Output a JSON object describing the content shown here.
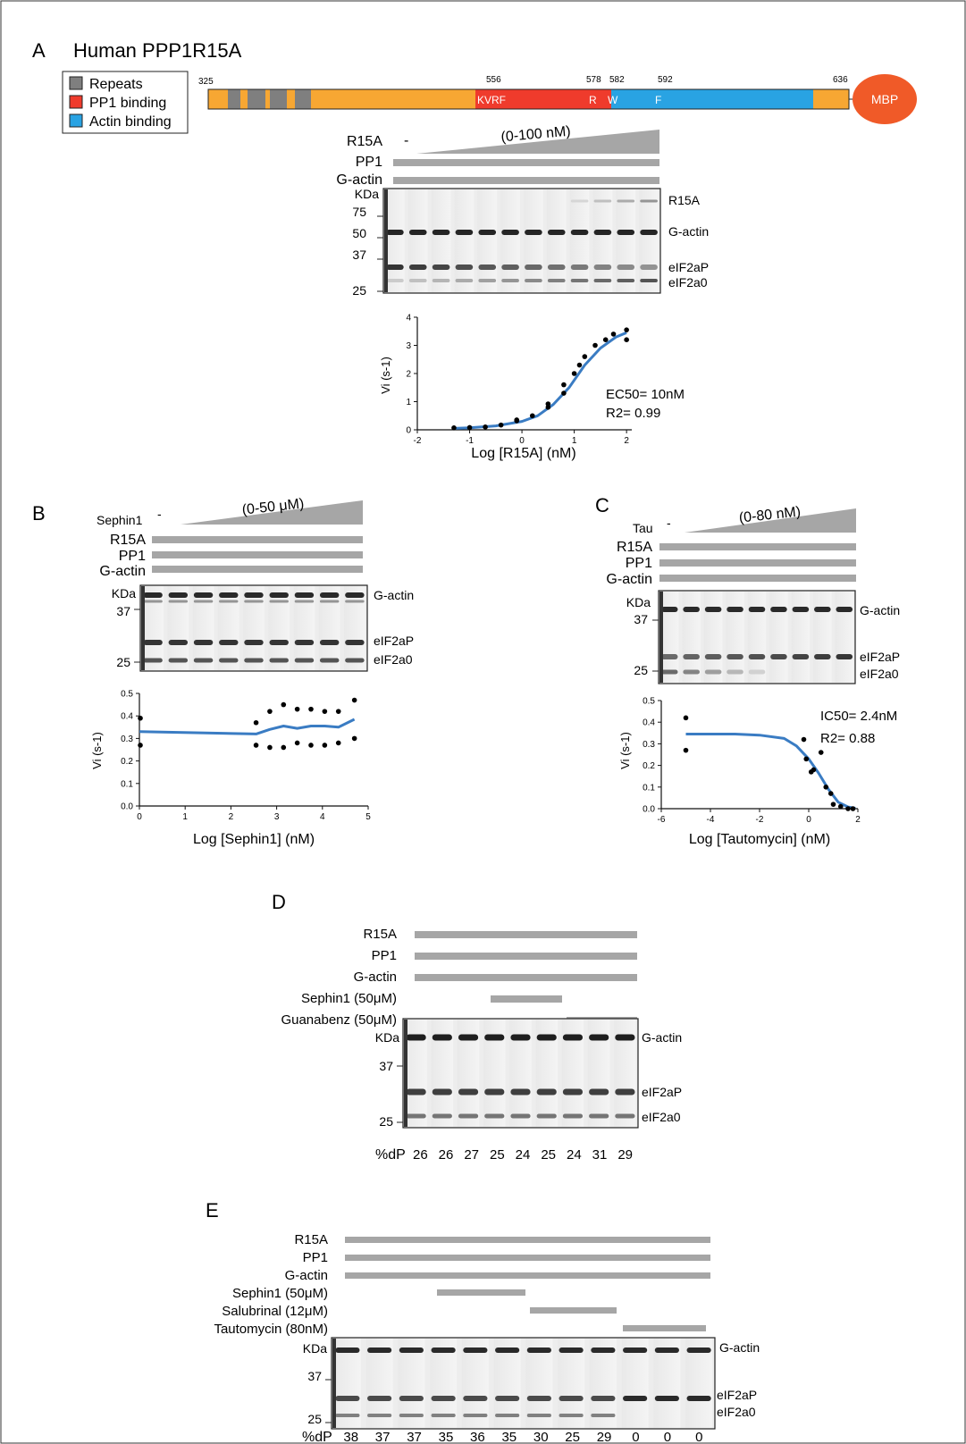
{
  "panelA": {
    "letter": "A",
    "title": "Human PPP1R15A",
    "legend": [
      {
        "label": "Repeats",
        "color": "#7f7f7f"
      },
      {
        "label": "PP1 binding",
        "color": "#ef3b2c"
      },
      {
        "label": "Actin binding",
        "color": "#29a3e3"
      }
    ],
    "domain": {
      "start_label": "325",
      "end_label": "636",
      "positions": [
        {
          "num": "556",
          "motif": "KVRF"
        },
        {
          "num": "578",
          "motif": "R"
        },
        {
          "num": "582",
          "motif": "W"
        },
        {
          "num": "592",
          "motif": "F"
        }
      ],
      "tag": "MBP",
      "colors": {
        "backbone": "#f7a733",
        "repeat": "#7f7f7f",
        "pp1": "#ef3b2c",
        "actin": "#29a3e3",
        "mbp": "#f05a28"
      }
    },
    "gel": {
      "conditions": [
        "R15A",
        "PP1",
        "G-actin"
      ],
      "dash": "-",
      "range_label": "(0-100 nM)",
      "kda": "KDa",
      "markers": [
        "75",
        "50",
        "37",
        "25"
      ],
      "bands": [
        "R15A",
        "G-actin",
        "eIF2aP",
        "eIF2a0"
      ]
    },
    "plot": {
      "type": "scatter",
      "ylabel": "Vi (s-1)",
      "xlabel": "Log [R15A] (nM)",
      "xticks": [
        "-2",
        "-1",
        "0",
        "1",
        "2"
      ],
      "yticks": [
        "0",
        "1",
        "2",
        "3",
        "4"
      ],
      "xlim": [
        -2,
        2.1
      ],
      "ylim": [
        0,
        4
      ],
      "ann1": "EC50= 10nM",
      "ann2": "R2= 0.99"
    }
  },
  "panelB": {
    "letter": "B",
    "first_condition": "Sephin1",
    "dash": "-",
    "range_label": "(0-50 μM)",
    "conditions": [
      "R15A",
      "PP1",
      "G-actin"
    ],
    "kda": "KDa",
    "markers": [
      "37",
      "25"
    ],
    "bands": [
      "G-actin",
      "eIF2aP",
      "eIF2a0"
    ],
    "plot": {
      "ylabel": "Vi (s-1)",
      "xlabel": "Log [Sephin1] (nM)",
      "xticks": [
        "0",
        "1",
        "2",
        "3",
        "4",
        "5"
      ],
      "yticks": [
        "0.0",
        "0.1",
        "0.2",
        "0.3",
        "0.4",
        "0.5"
      ]
    }
  },
  "panelC": {
    "letter": "C",
    "first_condition": "Tau",
    "dash": "-",
    "range_label": "(0-80 nM)",
    "conditions": [
      "R15A",
      "PP1",
      "G-actin"
    ],
    "kda": "KDa",
    "markers": [
      "37",
      "25"
    ],
    "bands": [
      "G-actin",
      "eIF2aP",
      "eIF2a0"
    ],
    "plot": {
      "ylabel": "Vi (s-1)",
      "xlabel": "Log [Tautomycin] (nM)",
      "xticks": [
        "-6",
        "-4",
        "-2",
        "0",
        "2"
      ],
      "yticks": [
        "0.0",
        "0.1",
        "0.2",
        "0.3",
        "0.4",
        "0.5"
      ],
      "ann1": "IC50= 2.4nM",
      "ann2": "R2= 0.88"
    }
  },
  "panelD": {
    "letter": "D",
    "conditions": [
      "R15A",
      "PP1",
      "G-actin",
      "Sephin1 (50μM)",
      "Guanabenz (50μM)"
    ],
    "kda": "KDa",
    "markers": [
      "37",
      "25"
    ],
    "bands": [
      "G-actin",
      "eIF2aP",
      "eIF2a0"
    ],
    "dp_label": "%dP",
    "dp_values": [
      "26",
      "26",
      "27",
      "25",
      "24",
      "25",
      "24",
      "31",
      "29"
    ]
  },
  "panelE": {
    "letter": "E",
    "conditions": [
      "R15A",
      "PP1",
      "G-actin",
      "Sephin1 (50μM)",
      "Salubrinal (12μM)",
      "Tautomycin (80nM)"
    ],
    "kda": "KDa",
    "markers": [
      "37",
      "25"
    ],
    "bands": [
      "G-actin",
      "eIF2aP",
      "eIF2a0"
    ],
    "dp_label": "%dP",
    "dp_values": [
      "38",
      "37",
      "37",
      "35",
      "36",
      "35",
      "30",
      "25",
      "29",
      "0",
      "0",
      "0"
    ]
  },
  "chart_data": [
    {
      "type": "scatter",
      "panel": "A",
      "xlabel": "Log [R15A] (nM)",
      "ylabel": "Vi (s-1)",
      "xlim": [
        -2,
        2.1
      ],
      "ylim": [
        0,
        4
      ],
      "points": [
        [
          -1.3,
          0.07
        ],
        [
          -1.0,
          0.08
        ],
        [
          -0.7,
          0.1
        ],
        [
          -0.4,
          0.17
        ],
        [
          -0.1,
          0.32
        ],
        [
          -0.1,
          0.35
        ],
        [
          0.2,
          0.5
        ],
        [
          0.5,
          0.8
        ],
        [
          0.5,
          0.92
        ],
        [
          0.8,
          1.3
        ],
        [
          0.8,
          1.6
        ],
        [
          1.0,
          2.0
        ],
        [
          1.1,
          2.3
        ],
        [
          1.2,
          2.6
        ],
        [
          1.4,
          3.0
        ],
        [
          1.6,
          3.2
        ],
        [
          1.75,
          3.4
        ],
        [
          2.0,
          3.55
        ],
        [
          2.0,
          3.2
        ]
      ],
      "fit": [
        [
          -1.3,
          0.05
        ],
        [
          -1.0,
          0.07
        ],
        [
          -0.5,
          0.14
        ],
        [
          0,
          0.3
        ],
        [
          0.3,
          0.5
        ],
        [
          0.6,
          0.9
        ],
        [
          0.9,
          1.5
        ],
        [
          1.2,
          2.3
        ],
        [
          1.5,
          2.9
        ],
        [
          1.8,
          3.3
        ],
        [
          2.0,
          3.45
        ]
      ]
    },
    {
      "type": "scatter",
      "panel": "B",
      "xlabel": "Log [Sephin1] (nM)",
      "ylabel": "Vi (s-1)",
      "xlim": [
        0,
        5
      ],
      "ylim": [
        0,
        0.5
      ],
      "points": [
        [
          0.02,
          0.39
        ],
        [
          0.02,
          0.27
        ],
        [
          2.55,
          0.37
        ],
        [
          2.55,
          0.27
        ],
        [
          2.85,
          0.42
        ],
        [
          2.85,
          0.26
        ],
        [
          3.15,
          0.45
        ],
        [
          3.15,
          0.26
        ],
        [
          3.45,
          0.43
        ],
        [
          3.45,
          0.28
        ],
        [
          3.75,
          0.43
        ],
        [
          3.75,
          0.27
        ],
        [
          4.05,
          0.42
        ],
        [
          4.05,
          0.27
        ],
        [
          4.35,
          0.42
        ],
        [
          4.35,
          0.28
        ],
        [
          4.7,
          0.47
        ],
        [
          4.7,
          0.3
        ]
      ],
      "fit": [
        [
          0,
          0.33
        ],
        [
          2.55,
          0.32
        ],
        [
          2.85,
          0.34
        ],
        [
          3.15,
          0.355
        ],
        [
          3.45,
          0.345
        ],
        [
          3.75,
          0.355
        ],
        [
          4.05,
          0.355
        ],
        [
          4.35,
          0.35
        ],
        [
          4.7,
          0.385
        ]
      ]
    },
    {
      "type": "scatter",
      "panel": "C",
      "xlabel": "Log [Tautomycin] (nM)",
      "ylabel": "Vi (s-1)",
      "xlim": [
        -6,
        2
      ],
      "ylim": [
        0,
        0.5
      ],
      "points": [
        [
          -5,
          0.42
        ],
        [
          -5,
          0.27
        ],
        [
          -0.2,
          0.32
        ],
        [
          -0.1,
          0.23
        ],
        [
          0.1,
          0.17
        ],
        [
          0.2,
          0.18
        ],
        [
          0.5,
          0.26
        ],
        [
          0.7,
          0.1
        ],
        [
          0.9,
          0.07
        ],
        [
          1.0,
          0.02
        ],
        [
          1.3,
          0.01
        ],
        [
          1.6,
          0.0
        ],
        [
          1.8,
          0.0
        ]
      ],
      "fit": [
        [
          -5,
          0.345
        ],
        [
          -3,
          0.345
        ],
        [
          -2,
          0.34
        ],
        [
          -1,
          0.325
        ],
        [
          -0.5,
          0.29
        ],
        [
          0,
          0.23
        ],
        [
          0.4,
          0.165
        ],
        [
          0.8,
          0.09
        ],
        [
          1.2,
          0.03
        ],
        [
          1.6,
          0.008
        ],
        [
          1.9,
          0.002
        ]
      ]
    }
  ]
}
